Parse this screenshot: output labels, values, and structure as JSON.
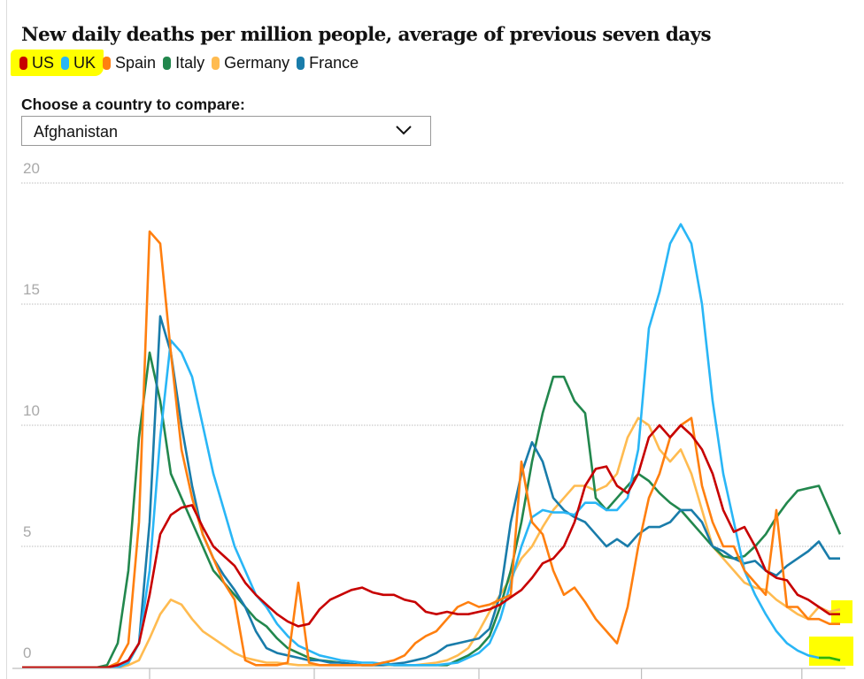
{
  "chart_data": {
    "type": "line",
    "title": "New daily deaths per million people, average of previous seven days",
    "xlabel": "",
    "ylabel": "",
    "ylim": [
      0,
      20
    ],
    "yticks": [
      0,
      5,
      10,
      15,
      20
    ],
    "grid": true,
    "legend_position": "top-left",
    "x_tick_count": 5,
    "x_tick_labels": [
      "",
      "",
      "",
      "",
      ""
    ],
    "x": [
      0,
      1,
      2,
      3,
      4,
      5,
      6,
      7,
      8,
      9,
      10,
      11,
      12,
      13,
      14,
      15,
      16,
      17,
      18,
      19,
      20,
      21,
      22,
      23,
      24,
      25,
      26,
      27,
      28,
      29,
      30,
      31,
      32,
      33,
      34,
      35,
      36,
      37,
      38,
      39,
      40,
      41,
      42,
      43,
      44,
      45,
      46,
      47,
      48,
      49,
      50,
      51,
      52,
      53,
      54,
      55,
      56,
      57,
      58,
      59,
      60,
      61,
      62,
      63,
      64,
      65,
      66,
      67,
      68,
      69,
      70,
      71,
      72,
      73,
      74,
      75,
      76,
      77
    ],
    "x_tick_positions": [
      12,
      27.5,
      43,
      58.3,
      73.4
    ],
    "series": [
      {
        "name": "US",
        "color": "#c70000",
        "values": [
          0,
          0,
          0,
          0,
          0,
          0,
          0,
          0,
          0,
          0.1,
          0.3,
          1.0,
          3.0,
          5.5,
          6.3,
          6.6,
          6.7,
          5.8,
          5.0,
          4.6,
          4.2,
          3.5,
          3.0,
          2.6,
          2.2,
          1.9,
          1.7,
          1.8,
          2.4,
          2.8,
          3.0,
          3.2,
          3.3,
          3.1,
          3.0,
          3.0,
          2.8,
          2.7,
          2.3,
          2.2,
          2.3,
          2.2,
          2.2,
          2.3,
          2.4,
          2.6,
          2.9,
          3.2,
          3.7,
          4.3,
          4.5,
          5.0,
          6.0,
          7.5,
          8.2,
          8.3,
          7.5,
          7.2,
          8.0,
          9.5,
          10.0,
          9.5,
          10.0,
          9.6,
          9.0,
          8.0,
          6.5,
          5.6,
          5.8,
          5.0,
          4.0,
          3.7,
          3.6,
          3.0,
          2.8,
          2.5,
          2.2,
          2.2
        ]
      },
      {
        "name": "UK",
        "color": "#29b6f6",
        "values": [
          0,
          0,
          0,
          0,
          0,
          0,
          0,
          0,
          0,
          0,
          0.2,
          1.0,
          4.0,
          9.5,
          13.5,
          13.0,
          12.0,
          10.0,
          8.0,
          6.5,
          5.0,
          4.0,
          3.0,
          2.5,
          1.8,
          1.3,
          0.9,
          0.7,
          0.5,
          0.4,
          0.3,
          0.25,
          0.2,
          0.2,
          0.15,
          0.1,
          0.1,
          0.1,
          0.1,
          0.1,
          0.15,
          0.2,
          0.4,
          0.6,
          1.0,
          2.0,
          3.5,
          5.0,
          6.2,
          6.5,
          6.4,
          6.4,
          6.3,
          6.8,
          6.8,
          6.5,
          6.5,
          7.0,
          9.0,
          14.0,
          15.5,
          17.5,
          18.3,
          17.5,
          15.0,
          11.0,
          8.0,
          6.0,
          4.0,
          3.0,
          2.2,
          1.5,
          1.0,
          0.7,
          0.5,
          0.4,
          0.4,
          0.3
        ]
      },
      {
        "name": "Spain",
        "color": "#ff7f0f",
        "values": [
          0,
          0,
          0,
          0,
          0,
          0,
          0,
          0,
          0,
          0.2,
          1.0,
          6.0,
          18.0,
          17.5,
          13.0,
          9.0,
          7.0,
          5.5,
          4.5,
          3.5,
          2.8,
          0.3,
          0.1,
          0.1,
          0.1,
          0.2,
          3.5,
          0.2,
          0.1,
          0.1,
          0.1,
          0.1,
          0.1,
          0.1,
          0.2,
          0.3,
          0.5,
          1.0,
          1.3,
          1.5,
          2.0,
          2.5,
          2.7,
          2.5,
          2.6,
          2.8,
          3.0,
          8.5,
          6.0,
          5.5,
          4.0,
          3.0,
          3.3,
          2.7,
          2.0,
          1.5,
          1.0,
          2.5,
          5.0,
          7.0,
          8.0,
          9.5,
          10.0,
          10.3,
          7.5,
          6.0,
          5.0,
          5.0,
          4.0,
          3.5,
          3.0,
          6.5,
          2.5,
          2.5,
          2.0,
          2.0,
          1.8,
          1.8
        ]
      },
      {
        "name": "Italy",
        "color": "#22874d",
        "values": [
          0,
          0,
          0,
          0,
          0,
          0,
          0,
          0,
          0.1,
          1.0,
          4.0,
          9.5,
          13.0,
          11.0,
          8.0,
          7.0,
          6.0,
          5.0,
          4.0,
          3.5,
          3.0,
          2.5,
          2.0,
          1.7,
          1.2,
          0.8,
          0.6,
          0.4,
          0.3,
          0.25,
          0.2,
          0.15,
          0.1,
          0.1,
          0.2,
          0.1,
          0.1,
          0.1,
          0.1,
          0.1,
          0.1,
          0.3,
          0.5,
          0.8,
          1.3,
          2.5,
          4.0,
          6.0,
          8.5,
          10.5,
          12.0,
          12.0,
          11.0,
          10.5,
          7.0,
          6.5,
          7.0,
          7.5,
          8.0,
          7.7,
          7.2,
          6.8,
          6.5,
          6.0,
          5.5,
          5.0,
          4.6,
          4.5,
          4.6,
          5.0,
          5.5,
          6.2,
          6.8,
          7.3,
          7.4,
          7.5,
          6.5,
          5.5
        ]
      },
      {
        "name": "Germany",
        "color": "#ffbb50",
        "values": [
          0,
          0,
          0,
          0,
          0,
          0,
          0,
          0,
          0,
          0,
          0.1,
          0.3,
          1.2,
          2.2,
          2.8,
          2.6,
          2.0,
          1.5,
          1.2,
          0.9,
          0.6,
          0.4,
          0.3,
          0.2,
          0.2,
          0.15,
          0.1,
          0.1,
          0.1,
          0.1,
          0.1,
          0.1,
          0.1,
          0.1,
          0.1,
          0.1,
          0.1,
          0.1,
          0.15,
          0.2,
          0.3,
          0.5,
          0.8,
          1.5,
          2.3,
          3.0,
          3.7,
          4.5,
          5.0,
          5.8,
          6.5,
          7.0,
          7.5,
          7.5,
          7.3,
          7.5,
          8.0,
          9.5,
          10.3,
          10.0,
          9.0,
          8.5,
          9.0,
          8.0,
          6.5,
          5.0,
          4.5,
          4.0,
          3.5,
          3.3,
          3.2,
          2.8,
          2.5,
          2.2,
          2.0,
          2.5,
          2.3,
          2.4
        ]
      },
      {
        "name": "France",
        "color": "#197caa",
        "values": [
          0,
          0,
          0,
          0,
          0,
          0,
          0,
          0,
          0,
          0,
          0.2,
          1.0,
          6.0,
          14.5,
          13.0,
          10.0,
          7.5,
          5.5,
          4.5,
          3.8,
          3.2,
          2.5,
          1.5,
          0.8,
          0.6,
          0.5,
          0.4,
          0.3,
          0.3,
          0.2,
          0.2,
          0.15,
          0.1,
          0.1,
          0.1,
          0.15,
          0.2,
          0.3,
          0.4,
          0.6,
          0.9,
          1.0,
          1.1,
          1.2,
          1.6,
          3.0,
          6.0,
          8.0,
          9.3,
          8.5,
          7.0,
          6.5,
          6.2,
          6.0,
          5.5,
          5.0,
          5.3,
          5.0,
          5.5,
          5.8,
          5.8,
          6.0,
          6.5,
          6.5,
          6.0,
          5.0,
          4.8,
          4.5,
          4.3,
          4.4,
          4.0,
          3.8,
          4.2,
          4.5,
          4.8,
          5.2,
          4.5,
          4.5
        ]
      }
    ]
  },
  "header": {
    "title": "New daily deaths per million people, average of previous seven days"
  },
  "legend": [
    {
      "label": "US",
      "color": "#c70000"
    },
    {
      "label": "UK",
      "color": "#29b6f6"
    },
    {
      "label": "Spain",
      "color": "#ff7f0f"
    },
    {
      "label": "Italy",
      "color": "#22874d"
    },
    {
      "label": "Germany",
      "color": "#ffbb50"
    },
    {
      "label": "France",
      "color": "#197caa"
    }
  ],
  "compare": {
    "label": "Choose a country to compare:",
    "selected": "Afghanistan"
  },
  "highlight_color": "#ffff00"
}
